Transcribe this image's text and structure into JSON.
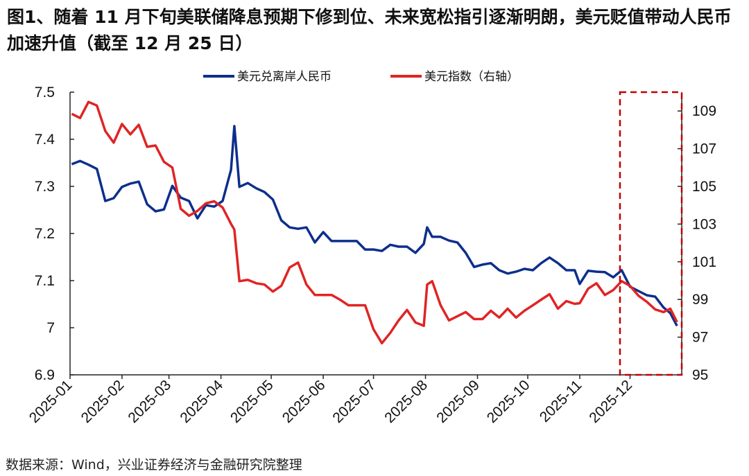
{
  "title": "图1、随着 11 月下旬美联储降息预期下修到位、未来宽松指引逐渐明朗，美元贬值带动人民币加速升值（截至 12 月 25 日）",
  "source": "数据来源：Wind，兴业证券经济与金融研究院整理",
  "chart_data": {
    "type": "line",
    "xlim": [
      "2025-01-01",
      "2025-12-31"
    ],
    "x_tick_labels": [
      "2025-01",
      "2025-02",
      "2025-03",
      "2025-04",
      "2025-05",
      "2025-06",
      "2025-07",
      "2025-08",
      "2025-09",
      "2025-10",
      "2025-11",
      "2025-12"
    ],
    "y_left": {
      "ylim": [
        6.9,
        7.5
      ],
      "ticks": [
        "7.5",
        "7.4",
        "7.3",
        "7.2",
        "7.1",
        "7",
        "6.9"
      ]
    },
    "y_right": {
      "ylim": [
        95,
        110
      ],
      "ticks": [
        "109",
        "107",
        "105",
        "103",
        "101",
        "99",
        "97",
        "95"
      ]
    },
    "grid": false,
    "legend": "top-center",
    "highlight_range": {
      "from": "2025-11-25",
      "to": "2025-12-31",
      "color": "#c00000",
      "style": "dashed"
    },
    "x": [
      "2025-01-02",
      "2025-01-07",
      "2025-01-12",
      "2025-01-17",
      "2025-01-22",
      "2025-01-27",
      "2025-02-01",
      "2025-02-06",
      "2025-02-11",
      "2025-02-16",
      "2025-02-21",
      "2025-02-26",
      "2025-03-03",
      "2025-03-08",
      "2025-03-13",
      "2025-03-18",
      "2025-03-23",
      "2025-03-28",
      "2025-04-02",
      "2025-04-07",
      "2025-04-09",
      "2025-04-12",
      "2025-04-17",
      "2025-04-22",
      "2025-04-27",
      "2025-05-02",
      "2025-05-07",
      "2025-05-12",
      "2025-05-17",
      "2025-05-22",
      "2025-05-27",
      "2025-06-01",
      "2025-06-06",
      "2025-06-11",
      "2025-06-16",
      "2025-06-21",
      "2025-06-26",
      "2025-07-01",
      "2025-07-06",
      "2025-07-11",
      "2025-07-16",
      "2025-07-21",
      "2025-07-26",
      "2025-07-31",
      "2025-08-02",
      "2025-08-05",
      "2025-08-10",
      "2025-08-15",
      "2025-08-20",
      "2025-08-25",
      "2025-08-30",
      "2025-09-04",
      "2025-09-09",
      "2025-09-14",
      "2025-09-19",
      "2025-09-24",
      "2025-09-29",
      "2025-10-04",
      "2025-10-09",
      "2025-10-14",
      "2025-10-19",
      "2025-10-24",
      "2025-10-29",
      "2025-11-01",
      "2025-11-06",
      "2025-11-11",
      "2025-11-16",
      "2025-11-21",
      "2025-11-26",
      "2025-12-01",
      "2025-12-06",
      "2025-12-11",
      "2025-12-16",
      "2025-12-21",
      "2025-12-25",
      "2025-12-29"
    ],
    "series": [
      {
        "name": "美元兑离岸人民币",
        "axis": "left",
        "color": "#0d2f8c",
        "values": [
          7.347,
          7.354,
          7.346,
          7.337,
          7.269,
          7.275,
          7.299,
          7.306,
          7.31,
          7.262,
          7.247,
          7.251,
          7.301,
          7.276,
          7.269,
          7.232,
          7.26,
          7.257,
          7.269,
          7.335,
          7.428,
          7.299,
          7.307,
          7.296,
          7.288,
          7.272,
          7.228,
          7.213,
          7.21,
          7.213,
          7.181,
          7.203,
          7.184,
          7.184,
          7.184,
          7.184,
          7.166,
          7.166,
          7.163,
          7.176,
          7.172,
          7.172,
          7.159,
          7.178,
          7.213,
          7.193,
          7.193,
          7.185,
          7.181,
          7.159,
          7.129,
          7.134,
          7.137,
          7.122,
          7.115,
          7.119,
          7.125,
          7.122,
          7.137,
          7.149,
          7.137,
          7.122,
          7.122,
          7.093,
          7.121,
          7.119,
          7.118,
          7.107,
          7.122,
          7.087,
          7.078,
          7.069,
          7.066,
          7.043,
          7.031,
          7.004
        ]
      },
      {
        "name": "美元指数（右轴）",
        "axis": "right",
        "color": "#e02424",
        "values": [
          108.85,
          108.63,
          109.48,
          109.29,
          107.94,
          107.32,
          108.31,
          107.76,
          108.27,
          107.1,
          107.17,
          106.3,
          106.0,
          103.81,
          103.44,
          103.7,
          104.1,
          104.21,
          103.88,
          103.01,
          102.71,
          99.97,
          100.04,
          99.86,
          99.79,
          99.42,
          99.72,
          100.7,
          100.96,
          99.79,
          99.24,
          99.24,
          99.24,
          98.99,
          98.69,
          98.69,
          98.69,
          97.41,
          96.68,
          97.23,
          97.89,
          98.44,
          97.78,
          97.6,
          99.79,
          99.97,
          98.69,
          97.89,
          98.11,
          98.33,
          97.96,
          97.96,
          98.4,
          98.04,
          98.51,
          98.04,
          98.4,
          98.69,
          98.99,
          99.28,
          98.51,
          98.91,
          98.77,
          98.8,
          99.57,
          99.86,
          99.24,
          99.5,
          99.97,
          99.72,
          99.2,
          98.88,
          98.47,
          98.33,
          98.51,
          97.8
        ]
      }
    ]
  }
}
